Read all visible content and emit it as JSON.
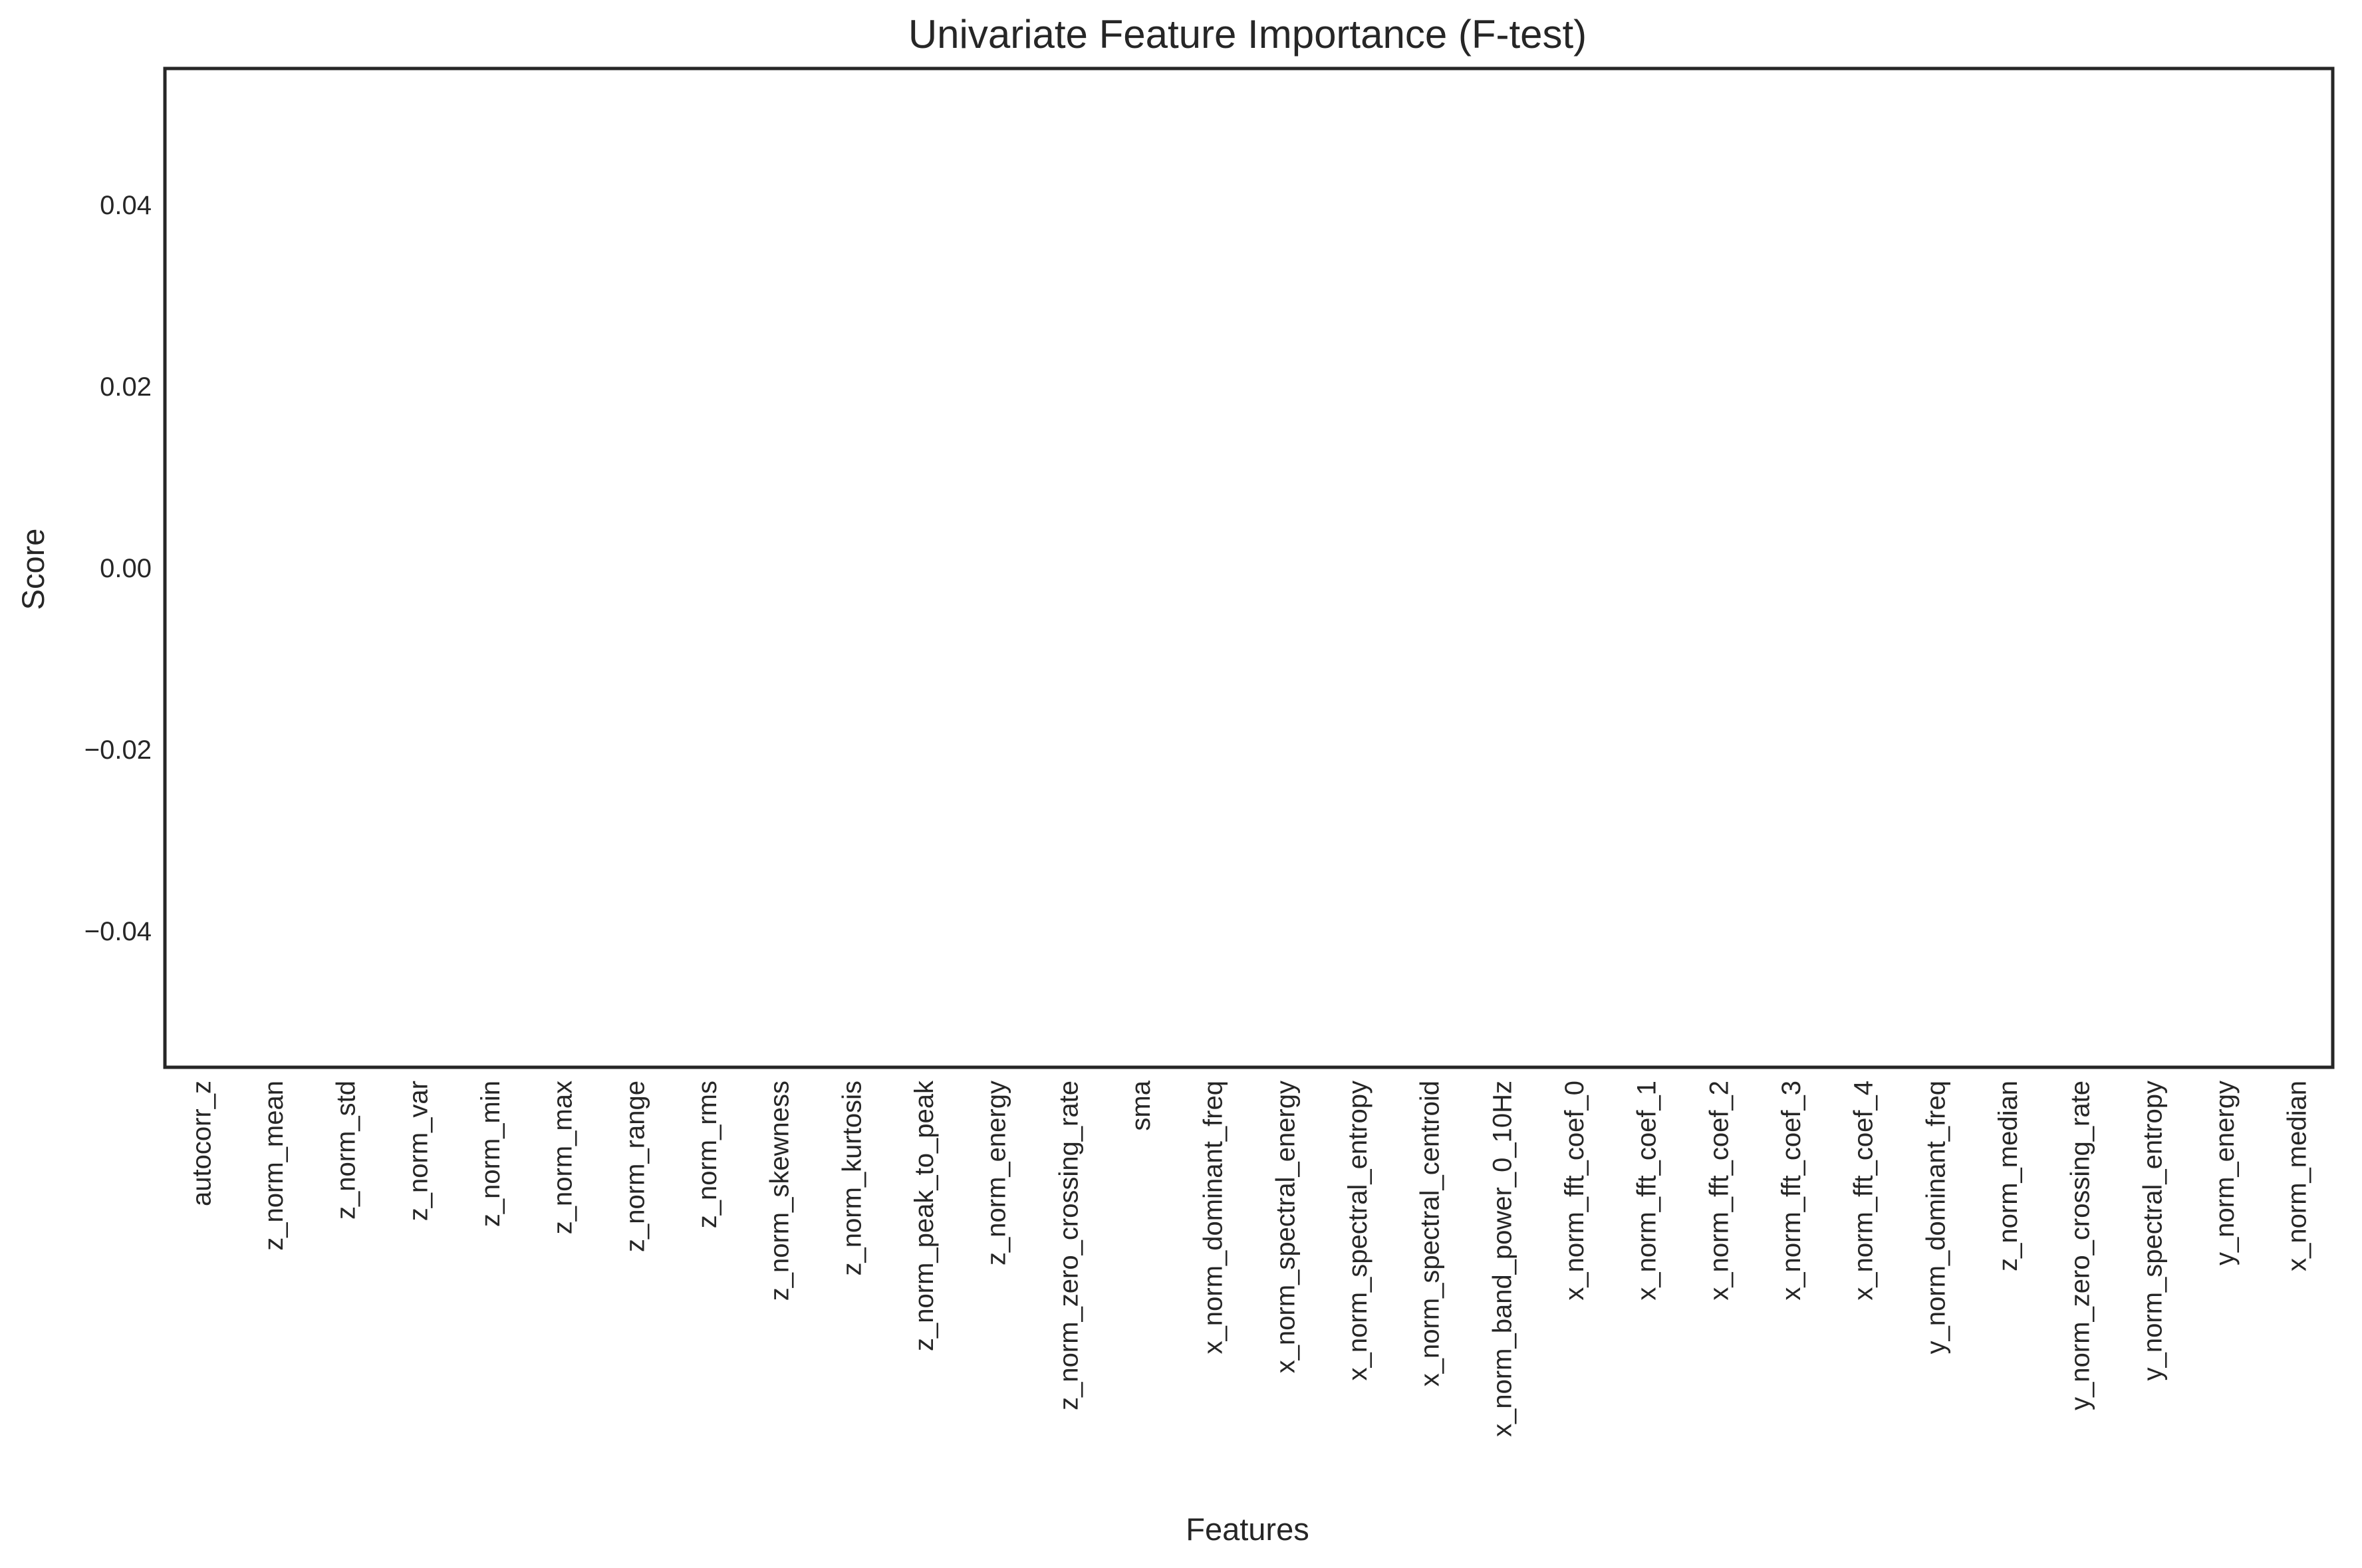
{
  "chart_data": {
    "type": "bar",
    "title": "Univariate Feature Importance (F-test)",
    "xlabel": "Features",
    "ylabel": "Score",
    "ylim": [
      -0.055,
      0.055
    ],
    "yticks": [
      -0.04,
      -0.02,
      0.0,
      0.02,
      0.04
    ],
    "ytick_labels": [
      "−0.04",
      "−0.02",
      "0.00",
      "0.02",
      "0.04"
    ],
    "grid": false,
    "legend": "none",
    "categories": [
      "autocorr_z",
      "z_norm_mean",
      "z_norm_std",
      "z_norm_var",
      "z_norm_min",
      "z_norm_max",
      "z_norm_range",
      "z_norm_rms",
      "z_norm_skewness",
      "z_norm_kurtosis",
      "z_norm_peak_to_peak",
      "z_norm_energy",
      "z_norm_zero_crossing_rate",
      "sma",
      "x_norm_dominant_freq",
      "x_norm_spectral_energy",
      "x_norm_spectral_entropy",
      "x_norm_spectral_centroid",
      "x_norm_band_power_0_10Hz",
      "x_norm_fft_coef_0",
      "x_norm_fft_coef_1",
      "x_norm_fft_coef_2",
      "x_norm_fft_coef_3",
      "x_norm_fft_coef_4",
      "y_norm_dominant_freq",
      "z_norm_median",
      "y_norm_zero_crossing_rate",
      "y_norm_spectral_entropy",
      "y_norm_energy",
      "x_norm_median"
    ],
    "values": [
      0,
      0,
      0,
      0,
      0,
      0,
      0,
      0,
      0,
      0,
      0,
      0,
      0,
      0,
      0,
      0,
      0,
      0,
      0,
      0,
      0,
      0,
      0,
      0,
      0,
      0,
      0,
      0,
      0,
      0
    ],
    "colors": {
      "axis": "#262626",
      "text": "#262626",
      "background": "#ffffff",
      "bar": "#4c72b0"
    }
  }
}
